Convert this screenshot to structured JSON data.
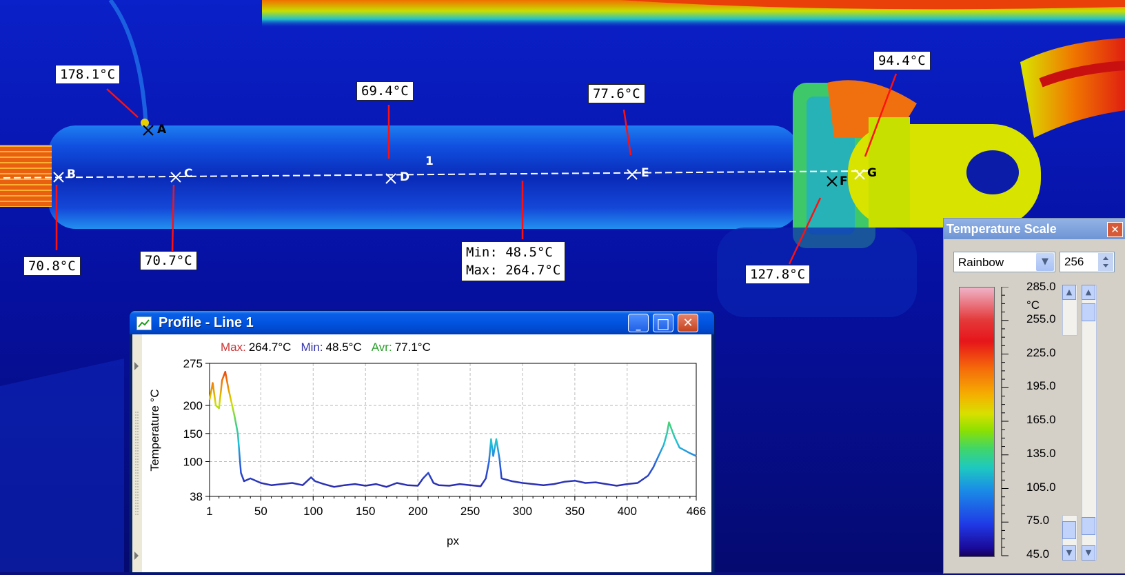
{
  "image_annotations": {
    "points": [
      {
        "name": "A",
        "temp": "178.1°C"
      },
      {
        "name": "B",
        "temp": "70.8°C"
      },
      {
        "name": "C",
        "temp": "70.7°C"
      },
      {
        "name": "D",
        "temp": "69.4°C"
      },
      {
        "name": "E",
        "temp": "77.6°C"
      },
      {
        "name": "F",
        "temp": "127.8°C"
      },
      {
        "name": "G",
        "temp": "94.4°C"
      }
    ],
    "line_label": "1",
    "line_stats": {
      "min": "Min: 48.5°C",
      "max": "Max: 264.7°C"
    }
  },
  "profile_window": {
    "title": "Profile - Line 1",
    "stats": {
      "max_label": "Max:",
      "max_value": "264.7°C",
      "min_label": "Min:",
      "min_value": "48.5°C",
      "avr_label": "Avr:",
      "avr_value": "77.1°C"
    },
    "buttons": {
      "minimize": "_",
      "maximize": "□",
      "close": "✕"
    }
  },
  "chart_data": {
    "type": "line",
    "title": "",
    "xlabel": "px",
    "ylabel": "Temperature °C",
    "x_ticks": [
      "1",
      "50",
      "100",
      "150",
      "200",
      "250",
      "300",
      "350",
      "400",
      "466"
    ],
    "y_ticks": [
      "38",
      "100",
      "150",
      "200",
      "275"
    ],
    "xlim": [
      1,
      466
    ],
    "ylim": [
      38,
      275
    ],
    "grid": true,
    "series": [
      {
        "x": [
          1,
          4,
          7,
          10,
          13,
          16,
          19,
          22,
          25,
          28,
          31,
          34,
          40,
          50,
          60,
          70,
          80,
          90,
          98,
          102,
          110,
          120,
          130,
          140,
          150,
          160,
          170,
          180,
          190,
          200,
          205,
          210,
          215,
          220,
          230,
          240,
          250,
          260,
          265,
          268,
          270,
          272,
          275,
          278,
          280,
          290,
          300,
          310,
          320,
          330,
          340,
          350,
          360,
          370,
          380,
          390,
          400,
          410,
          420,
          425,
          430,
          435,
          438,
          440,
          445,
          450,
          455,
          460,
          466
        ],
        "y": [
          210,
          240,
          200,
          195,
          245,
          260,
          230,
          205,
          180,
          150,
          80,
          65,
          70,
          62,
          58,
          60,
          62,
          58,
          72,
          65,
          60,
          55,
          58,
          60,
          57,
          60,
          55,
          62,
          58,
          57,
          70,
          80,
          62,
          58,
          57,
          60,
          58,
          56,
          70,
          100,
          140,
          110,
          140,
          105,
          70,
          65,
          62,
          60,
          58,
          60,
          64,
          66,
          62,
          63,
          60,
          57,
          60,
          62,
          75,
          90,
          110,
          130,
          150,
          170,
          145,
          125,
          120,
          115,
          110
        ]
      }
    ]
  },
  "temperature_scale": {
    "title": "Temperature Scale",
    "palette": "Rainbow",
    "levels": "256",
    "unit": "°C",
    "labels": [
      "285.0",
      "255.0",
      "225.0",
      "195.0",
      "165.0",
      "135.0",
      "105.0",
      "75.0",
      "45.0"
    ]
  },
  "colors": {
    "max": "#cc3333",
    "min": "#3333aa",
    "avr": "#2aa02a",
    "annotation_arrow": "#ff1010"
  }
}
